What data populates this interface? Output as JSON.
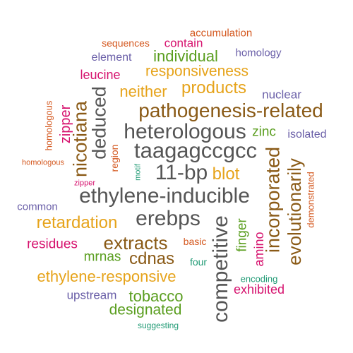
{
  "palette": {
    "orange": "#e6a31a",
    "brown": "#8a5a16",
    "gray": "#555555",
    "green": "#5a9e1f",
    "magenta": "#d6126e",
    "purple": "#6a5fa8",
    "teal": "#1f9a74",
    "red_orange": "#d4581f"
  },
  "words": [
    {
      "text": "accumulation",
      "color": "red_orange"
    },
    {
      "text": "sequences",
      "color": "red_orange"
    },
    {
      "text": "contain",
      "color": "magenta"
    },
    {
      "text": "element",
      "color": "purple"
    },
    {
      "text": "individual",
      "color": "green"
    },
    {
      "text": "homology",
      "color": "purple"
    },
    {
      "text": "leucine",
      "color": "magenta"
    },
    {
      "text": "responsiveness",
      "color": "orange"
    },
    {
      "text": "products",
      "color": "orange"
    },
    {
      "text": "neither",
      "color": "orange"
    },
    {
      "text": "nuclear",
      "color": "purple"
    },
    {
      "text": "pathogenesis-related",
      "color": "brown"
    },
    {
      "text": "heterologous",
      "color": "gray"
    },
    {
      "text": "zinc",
      "color": "green"
    },
    {
      "text": "isolated",
      "color": "purple"
    },
    {
      "text": "taagagccgcc",
      "color": "gray"
    },
    {
      "text": "11-bp",
      "color": "gray"
    },
    {
      "text": "blot",
      "color": "orange"
    },
    {
      "text": "ethylene-inducible",
      "color": "gray"
    },
    {
      "text": "common",
      "color": "purple"
    },
    {
      "text": "erebps",
      "color": "gray"
    },
    {
      "text": "retardation",
      "color": "orange"
    },
    {
      "text": "extracts",
      "color": "brown"
    },
    {
      "text": "residues",
      "color": "magenta"
    },
    {
      "text": "cdnas",
      "color": "brown"
    },
    {
      "text": "mrnas",
      "color": "green"
    },
    {
      "text": "basic",
      "color": "red_orange"
    },
    {
      "text": "ethylene-responsive",
      "color": "orange"
    },
    {
      "text": "four",
      "color": "teal"
    },
    {
      "text": "encoding",
      "color": "teal"
    },
    {
      "text": "upstream",
      "color": "purple"
    },
    {
      "text": "tobacco",
      "color": "green"
    },
    {
      "text": "exhibited",
      "color": "magenta"
    },
    {
      "text": "designated",
      "color": "green"
    },
    {
      "text": "suggesting",
      "color": "teal"
    },
    {
      "text": "homologous",
      "color": "red_orange"
    },
    {
      "text": "various",
      "color": "teal"
    },
    {
      "text": "zipper",
      "color": "magenta"
    },
    {
      "text": "within",
      "color": "teal"
    },
    {
      "text": "nicotiana",
      "color": "brown"
    },
    {
      "text": "deduced",
      "color": "gray"
    },
    {
      "text": "region",
      "color": "red_orange"
    },
    {
      "text": "motif",
      "color": "teal"
    },
    {
      "text": "competitive",
      "color": "gray"
    },
    {
      "text": "finger",
      "color": "green"
    },
    {
      "text": "amino",
      "color": "magenta"
    },
    {
      "text": "incorporated",
      "color": "brown"
    },
    {
      "text": "evolutionarily",
      "color": "brown"
    },
    {
      "text": "demonstrated",
      "color": "red_orange"
    }
  ]
}
